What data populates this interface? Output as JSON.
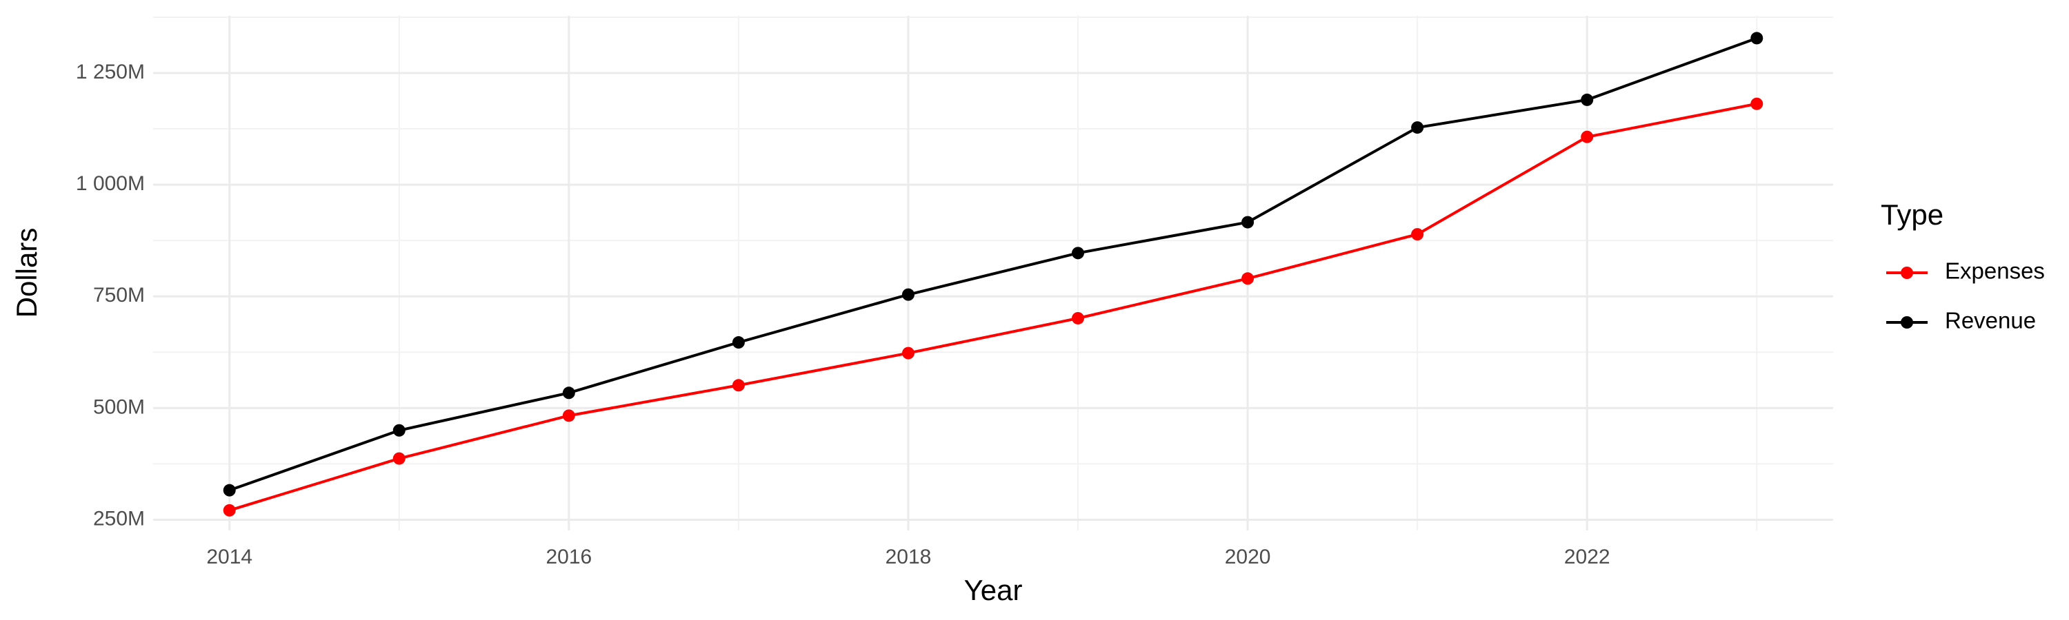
{
  "chart_data": {
    "type": "line",
    "x_label": "Year",
    "y_label": "Dollars",
    "x": [
      2014,
      2015,
      2016,
      2017,
      2018,
      2019,
      2020,
      2021,
      2022,
      2023
    ],
    "series": [
      {
        "name": "Expenses",
        "color": "#ff0000",
        "values": [
          271,
          387,
          483,
          551,
          623,
          701,
          790,
          889,
          1107,
          1181
        ]
      },
      {
        "name": "Revenue",
        "color": "#000000",
        "values": [
          316,
          450,
          534,
          647,
          754,
          847,
          916,
          1128,
          1190,
          1328
        ]
      }
    ],
    "xlim": [
      2013.55,
      2023.45
    ],
    "xticks": [
      2014,
      2016,
      2018,
      2020,
      2022
    ],
    "ylim": [
      226,
      1378
    ],
    "yticks": [
      {
        "value": 250,
        "label": "250M"
      },
      {
        "value": 500,
        "label": "500M"
      },
      {
        "value": 750,
        "label": "750M"
      },
      {
        "value": 1000,
        "label": "1 000M"
      },
      {
        "value": 1250,
        "label": "1 250M"
      }
    ],
    "grid": true,
    "legend_title": "Type",
    "legend_position": "right"
  }
}
